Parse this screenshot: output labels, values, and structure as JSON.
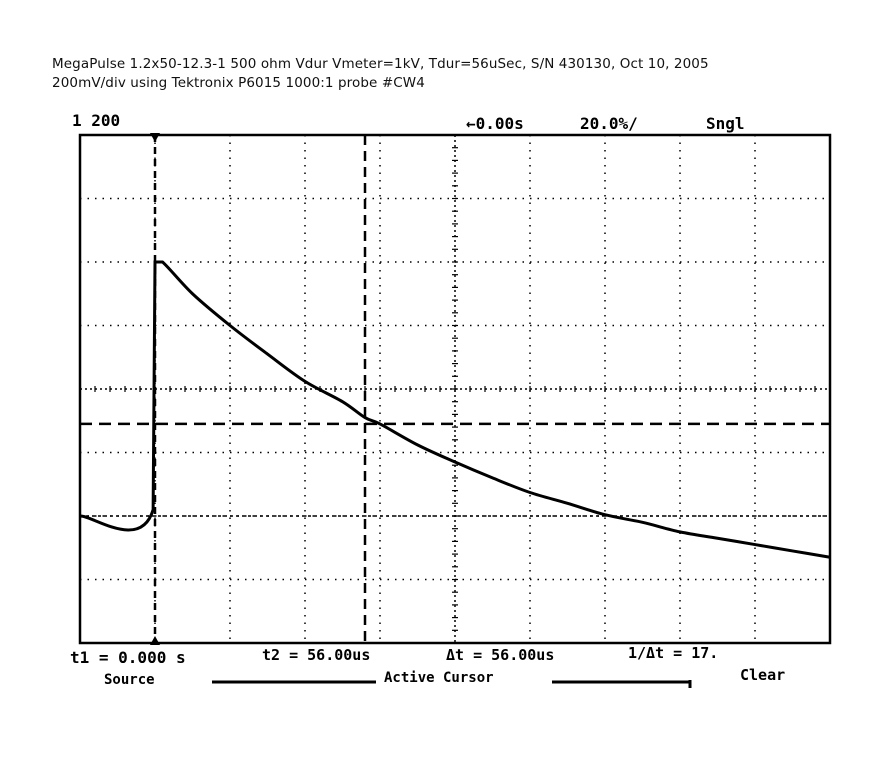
{
  "caption": {
    "line1": "MegaPulse 1.2x50-12.3-1 500 ohm Vdur Vmeter=1kV, Tdur=56uSec, S/N 430130, Oct 10, 2005",
    "line2": "200mV/div using Tektronix P6015 1000:1 probe #CW4"
  },
  "scope": {
    "channel_scale": "1  200",
    "time_ref": "←0.00s",
    "time_per_div": "20.0%/",
    "trigger_mode": "Sngl",
    "cursor_t1": "t1 = 0.000 s",
    "cursor_t2": "t2 = 56.00us",
    "cursor_dt": "Δt = 56.00us",
    "cursor_inv_dt": "1/Δt = 17.",
    "softkey_source": "Source",
    "softkey_active_cursor": "Active Cursor",
    "softkey_clear": "Clear"
  },
  "chart_data": {
    "type": "line",
    "title": "",
    "xlabel": "",
    "ylabel": "",
    "x_unit": "us",
    "y_unit": "div",
    "xlim": [
      -20,
      180
    ],
    "ylim": [
      -4,
      4
    ],
    "grid": true,
    "grid_divisions": {
      "x": 10,
      "y": 8
    },
    "series": [
      {
        "x": [
          -20,
          -0.5,
          0,
          2,
          10,
          20,
          30,
          40,
          50,
          56,
          60,
          70,
          80,
          90,
          100,
          110,
          120,
          130,
          140,
          150,
          160,
          170,
          180
        ],
        "y": [
          -2.0,
          -1.9,
          2.0,
          2.0,
          1.5,
          1.0,
          0.55,
          0.12,
          -0.2,
          -0.45,
          -0.55,
          -0.88,
          -1.15,
          -1.4,
          -1.63,
          -1.8,
          -1.98,
          -2.1,
          -2.25,
          -2.35,
          -2.45,
          -2.55,
          -2.65
        ]
      }
    ],
    "cursors": {
      "t1": 0,
      "t2": 56,
      "horizontal_level": -0.55,
      "ground_level": -2.0
    }
  }
}
